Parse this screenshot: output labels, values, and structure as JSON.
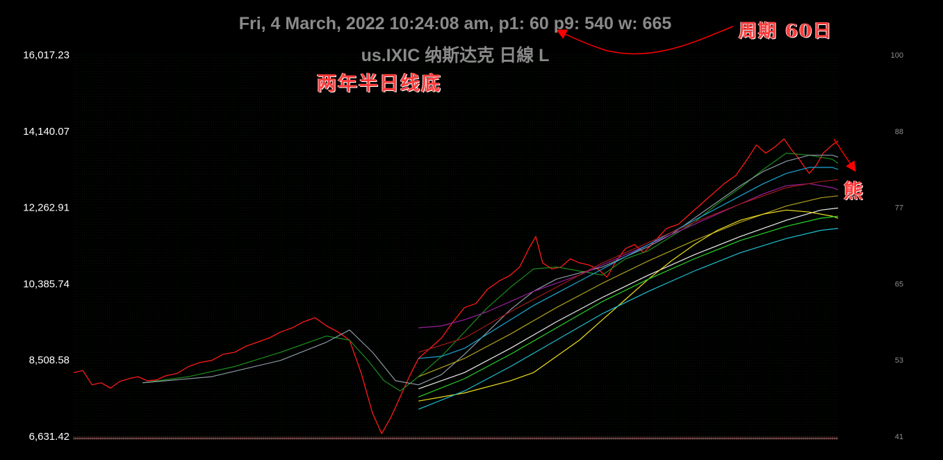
{
  "header": {
    "title_line1": "Fri, 4 March, 2022 10:24:08 am, p1: 60 p9: 540 w: 665",
    "title_line2": "us.IXIC 纳斯达克 日線 L"
  },
  "annotations": {
    "period": "周期 60日",
    "bottom": "两年半日线底",
    "bear": "熊"
  },
  "chart_data": {
    "type": "line",
    "left_axis_ticks": [
      "16,017.23",
      "14,140.07",
      "12,262.91",
      "10,385.74",
      "8,508.58",
      "6,631.42"
    ],
    "left_axis_values": [
      16017.23,
      14140.07,
      12262.91,
      10385.74,
      8508.58,
      6631.42
    ],
    "right_axis_ticks": [
      "100",
      "88",
      "77",
      "65",
      "53",
      "41"
    ],
    "ylim": [
      6631.42,
      16017.23
    ],
    "x_range": [
      0,
      665
    ],
    "series": [
      {
        "color": "#ff1a1a",
        "points": [
          [
            0,
            8200
          ],
          [
            8,
            8250
          ],
          [
            16,
            7900
          ],
          [
            24,
            7950
          ],
          [
            32,
            7820
          ],
          [
            40,
            7980
          ],
          [
            48,
            8050
          ],
          [
            56,
            8100
          ],
          [
            64,
            8000
          ],
          [
            72,
            8020
          ],
          [
            80,
            8120
          ],
          [
            90,
            8180
          ],
          [
            100,
            8350
          ],
          [
            110,
            8450
          ],
          [
            120,
            8500
          ],
          [
            130,
            8650
          ],
          [
            140,
            8700
          ],
          [
            150,
            8850
          ],
          [
            160,
            8950
          ],
          [
            170,
            9050
          ],
          [
            180,
            9200
          ],
          [
            190,
            9300
          ],
          [
            200,
            9450
          ],
          [
            210,
            9550
          ],
          [
            220,
            9350
          ],
          [
            230,
            9200
          ],
          [
            240,
            9000
          ],
          [
            250,
            8200
          ],
          [
            260,
            7200
          ],
          [
            268,
            6700
          ],
          [
            276,
            7100
          ],
          [
            284,
            7600
          ],
          [
            292,
            8100
          ],
          [
            300,
            8550
          ],
          [
            310,
            8800
          ],
          [
            320,
            9050
          ],
          [
            330,
            9450
          ],
          [
            340,
            9800
          ],
          [
            350,
            9900
          ],
          [
            360,
            10250
          ],
          [
            370,
            10450
          ],
          [
            380,
            10600
          ],
          [
            388,
            10800
          ],
          [
            396,
            11250
          ],
          [
            402,
            11550
          ],
          [
            408,
            10900
          ],
          [
            416,
            10750
          ],
          [
            424,
            10800
          ],
          [
            432,
            11000
          ],
          [
            440,
            10900
          ],
          [
            448,
            10850
          ],
          [
            456,
            10750
          ],
          [
            464,
            10550
          ],
          [
            472,
            10950
          ],
          [
            480,
            11250
          ],
          [
            488,
            11350
          ],
          [
            496,
            11150
          ],
          [
            506,
            11450
          ],
          [
            516,
            11750
          ],
          [
            526,
            11850
          ],
          [
            536,
            12100
          ],
          [
            546,
            12350
          ],
          [
            556,
            12600
          ],
          [
            566,
            12850
          ],
          [
            576,
            13050
          ],
          [
            586,
            13450
          ],
          [
            594,
            13800
          ],
          [
            602,
            13600
          ],
          [
            610,
            13750
          ],
          [
            618,
            13950
          ],
          [
            624,
            13700
          ],
          [
            630,
            13500
          ],
          [
            636,
            13250
          ],
          [
            640,
            13100
          ],
          [
            646,
            13300
          ],
          [
            652,
            13600
          ],
          [
            660,
            13800
          ],
          [
            665,
            13900
          ]
        ]
      },
      {
        "color": "#1e8c1e",
        "points": [
          [
            60,
            7950
          ],
          [
            100,
            8100
          ],
          [
            140,
            8350
          ],
          [
            180,
            8700
          ],
          [
            220,
            9100
          ],
          [
            240,
            9000
          ],
          [
            256,
            8500
          ],
          [
            270,
            8000
          ],
          [
            284,
            7750
          ],
          [
            300,
            8100
          ],
          [
            320,
            8600
          ],
          [
            340,
            9200
          ],
          [
            360,
            9800
          ],
          [
            380,
            10300
          ],
          [
            400,
            10750
          ],
          [
            420,
            10800
          ],
          [
            440,
            10700
          ],
          [
            460,
            10600
          ],
          [
            480,
            11000
          ],
          [
            500,
            11200
          ],
          [
            520,
            11550
          ],
          [
            540,
            11900
          ],
          [
            560,
            12350
          ],
          [
            580,
            12750
          ],
          [
            600,
            13200
          ],
          [
            620,
            13600
          ],
          [
            640,
            13550
          ],
          [
            660,
            13450
          ],
          [
            665,
            13350
          ]
        ]
      },
      {
        "color": "#8e9aa6",
        "points": [
          [
            60,
            7950
          ],
          [
            120,
            8100
          ],
          [
            180,
            8500
          ],
          [
            220,
            8950
          ],
          [
            240,
            9250
          ],
          [
            260,
            8700
          ],
          [
            280,
            8000
          ],
          [
            300,
            7900
          ],
          [
            320,
            8150
          ],
          [
            340,
            8650
          ],
          [
            360,
            9200
          ],
          [
            380,
            9750
          ],
          [
            400,
            10200
          ],
          [
            420,
            10500
          ],
          [
            440,
            10650
          ],
          [
            460,
            10800
          ],
          [
            480,
            11050
          ],
          [
            500,
            11300
          ],
          [
            520,
            11600
          ],
          [
            540,
            12000
          ],
          [
            560,
            12400
          ],
          [
            580,
            12800
          ],
          [
            600,
            13150
          ],
          [
            620,
            13400
          ],
          [
            640,
            13550
          ],
          [
            660,
            13550
          ],
          [
            665,
            13500
          ]
        ]
      },
      {
        "color": "#9b1f9b",
        "points": [
          [
            300,
            9300
          ],
          [
            320,
            9350
          ],
          [
            340,
            9500
          ],
          [
            360,
            9700
          ],
          [
            380,
            9950
          ],
          [
            400,
            10200
          ],
          [
            420,
            10400
          ],
          [
            440,
            10600
          ],
          [
            460,
            10850
          ],
          [
            480,
            11100
          ],
          [
            500,
            11350
          ],
          [
            520,
            11600
          ],
          [
            540,
            11850
          ],
          [
            560,
            12100
          ],
          [
            580,
            12350
          ],
          [
            600,
            12600
          ],
          [
            620,
            12800
          ],
          [
            640,
            12850
          ],
          [
            660,
            12750
          ],
          [
            665,
            12700
          ]
        ]
      },
      {
        "color": "#1ea7d6",
        "points": [
          [
            300,
            8550
          ],
          [
            320,
            8600
          ],
          [
            340,
            8800
          ],
          [
            360,
            9150
          ],
          [
            380,
            9500
          ],
          [
            400,
            9850
          ],
          [
            420,
            10150
          ],
          [
            440,
            10450
          ],
          [
            460,
            10750
          ],
          [
            480,
            11050
          ],
          [
            500,
            11350
          ],
          [
            520,
            11650
          ],
          [
            540,
            11950
          ],
          [
            560,
            12250
          ],
          [
            580,
            12550
          ],
          [
            600,
            12850
          ],
          [
            620,
            13100
          ],
          [
            640,
            13250
          ],
          [
            660,
            13250
          ],
          [
            665,
            13200
          ]
        ]
      },
      {
        "color": "#a51a1a",
        "points": [
          [
            300,
            8700
          ],
          [
            340,
            9050
          ],
          [
            380,
            9700
          ],
          [
            420,
            10300
          ],
          [
            460,
            10900
          ],
          [
            500,
            11400
          ],
          [
            540,
            11900
          ],
          [
            580,
            12350
          ],
          [
            620,
            12750
          ],
          [
            650,
            12900
          ],
          [
            665,
            12950
          ]
        ]
      },
      {
        "color": "#b0a020",
        "points": [
          [
            300,
            8100
          ],
          [
            340,
            8550
          ],
          [
            380,
            9150
          ],
          [
            420,
            9800
          ],
          [
            460,
            10400
          ],
          [
            500,
            10950
          ],
          [
            540,
            11450
          ],
          [
            580,
            11900
          ],
          [
            620,
            12300
          ],
          [
            650,
            12500
          ],
          [
            665,
            12550
          ]
        ]
      },
      {
        "color": "#eeeeee",
        "points": [
          [
            300,
            7800
          ],
          [
            340,
            8200
          ],
          [
            380,
            8800
          ],
          [
            420,
            9450
          ],
          [
            460,
            10050
          ],
          [
            500,
            10600
          ],
          [
            540,
            11100
          ],
          [
            580,
            11550
          ],
          [
            620,
            11950
          ],
          [
            650,
            12200
          ],
          [
            665,
            12250
          ]
        ]
      },
      {
        "color": "#f0e020",
        "points": [
          [
            300,
            7500
          ],
          [
            340,
            7700
          ],
          [
            380,
            8000
          ],
          [
            400,
            8200
          ],
          [
            420,
            8600
          ],
          [
            440,
            9000
          ],
          [
            460,
            9500
          ],
          [
            480,
            10000
          ],
          [
            500,
            10500
          ],
          [
            520,
            10950
          ],
          [
            540,
            11350
          ],
          [
            560,
            11700
          ],
          [
            580,
            11950
          ],
          [
            600,
            12100
          ],
          [
            620,
            12200
          ],
          [
            640,
            12150
          ],
          [
            660,
            12050
          ],
          [
            665,
            12000
          ]
        ]
      },
      {
        "color": "#2ad42a",
        "points": [
          [
            300,
            7600
          ],
          [
            340,
            8050
          ],
          [
            380,
            8650
          ],
          [
            420,
            9300
          ],
          [
            460,
            9950
          ],
          [
            500,
            10500
          ],
          [
            540,
            11000
          ],
          [
            580,
            11450
          ],
          [
            620,
            11800
          ],
          [
            650,
            12000
          ],
          [
            665,
            12050
          ]
        ]
      },
      {
        "color": "#20c0d0",
        "points": [
          [
            300,
            7300
          ],
          [
            340,
            7750
          ],
          [
            380,
            8350
          ],
          [
            420,
            9000
          ],
          [
            460,
            9650
          ],
          [
            500,
            10200
          ],
          [
            540,
            10700
          ],
          [
            580,
            11150
          ],
          [
            620,
            11500
          ],
          [
            650,
            11700
          ],
          [
            665,
            11750
          ]
        ]
      }
    ]
  }
}
